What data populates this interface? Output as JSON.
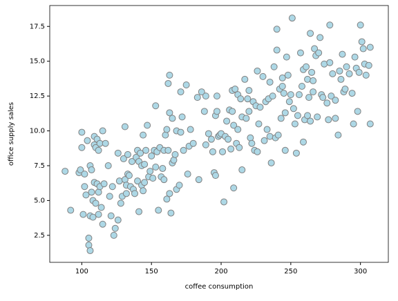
{
  "chart_data": {
    "type": "scatter",
    "xlabel": "coffee consumption",
    "ylabel": "office supply sales",
    "color": "#add8e6",
    "edgecolor": "#808080",
    "xlim": [
      77,
      320
    ],
    "ylim": [
      0.56,
      19
    ],
    "xticks": [
      100,
      150,
      200,
      250,
      300
    ],
    "yticks": [
      2.5,
      {
        "value": 5,
        "label": "5.0"
      },
      7.5,
      {
        "value": 10,
        "label": "10.0"
      },
      12.5,
      {
        "value": 15,
        "label": "15.0"
      },
      17.5
    ],
    "x": [
      88,
      92,
      98,
      99,
      100,
      100,
      101,
      102,
      102,
      103,
      104,
      105,
      105,
      106,
      106,
      106,
      107,
      107,
      108,
      108,
      109,
      109,
      110,
      109,
      110,
      111,
      111,
      112,
      112,
      112,
      113,
      113,
      114,
      115,
      115,
      116,
      117,
      119,
      120,
      121,
      122,
      123,
      124,
      126,
      126,
      127,
      128,
      129,
      130,
      131,
      131,
      132,
      132,
      133,
      133,
      134,
      135,
      136,
      137,
      138,
      139,
      140,
      140,
      141,
      141,
      142,
      143,
      143,
      144,
      144,
      145,
      145,
      146,
      147,
      148,
      149,
      150,
      151,
      152,
      153,
      153,
      154,
      155,
      156,
      157,
      158,
      159,
      159,
      160,
      161,
      161,
      162,
      162,
      163,
      163,
      163,
      164,
      165,
      165,
      166,
      167,
      168,
      168,
      170,
      171,
      171,
      172,
      173,
      175,
      176,
      177,
      178,
      180,
      183,
      184,
      186,
      188,
      189,
      189,
      191,
      193,
      194,
      195,
      196,
      196,
      197,
      197,
      198,
      199,
      200,
      201,
      202,
      203,
      204,
      205,
      206,
      207,
      208,
      208,
      209,
      209,
      210,
      211,
      212,
      212,
      213,
      214,
      215,
      215,
      217,
      218,
      219,
      220,
      220,
      221,
      222,
      223,
      224,
      225,
      226,
      226,
      227,
      228,
      230,
      231,
      232,
      233,
      234,
      235,
      235,
      236,
      237,
      238,
      239,
      240,
      240,
      241,
      242,
      243,
      244,
      244,
      245,
      246,
      246,
      247,
      248,
      249,
      250,
      251,
      252,
      253,
      254,
      255,
      256,
      257,
      258,
      259,
      259,
      260,
      261,
      262,
      262,
      263,
      264,
      264,
      265,
      266,
      266,
      267,
      268,
      269,
      270,
      271,
      272,
      273,
      274,
      276,
      277,
      278,
      278,
      279,
      280,
      282,
      282,
      284,
      285,
      286,
      287,
      288,
      289,
      290,
      292,
      294,
      295,
      296,
      297,
      298,
      299,
      300,
      301,
      302,
      303,
      304,
      306,
      307,
      307
    ],
    "values": [
      7.1,
      4.3,
      7.0,
      7.2,
      8.8,
      9.9,
      4.0,
      6.9,
      6.0,
      5.4,
      9.3,
      2.3,
      1.8,
      1.4,
      7.5,
      3.9,
      7.2,
      5.6,
      5.0,
      3.8,
      9.6,
      9.0,
      8.8,
      6.3,
      4.8,
      6.2,
      9.4,
      5.6,
      8.6,
      4.0,
      6.0,
      9.1,
      4.5,
      10.0,
      3.3,
      6.2,
      9.1,
      7.5,
      5.3,
      3.9,
      6.0,
      2.5,
      3.0,
      8.4,
      3.6,
      6.4,
      4.8,
      5.3,
      8.0,
      10.3,
      6.5,
      5.5,
      6.1,
      8.3,
      6.9,
      6.8,
      6.0,
      7.8,
      5.8,
      5.5,
      8.1,
      8.6,
      6.4,
      4.2,
      7.8,
      8.4,
      7.5,
      6.1,
      9.7,
      5.7,
      6.3,
      7.6,
      8.6,
      10.4,
      6.7,
      7.1,
      8.2,
      6.6,
      8.6,
      11.8,
      7.4,
      8.5,
      4.3,
      8.8,
      6.7,
      7.3,
      8.6,
      6.5,
      9.7,
      10.1,
      5.1,
      13.4,
      8.6,
      11.3,
      14.0,
      5.5,
      4.1,
      7.7,
      10.9,
      7.9,
      8.3,
      10.0,
      5.8,
      6.1,
      12.8,
      9.9,
      11.0,
      8.6,
      13.3,
      6.9,
      8.9,
      10.1,
      9.1,
      12.4,
      6.5,
      12.8,
      11.4,
      12.5,
      9.0,
      9.8,
      9.4,
      8.5,
      7.0,
      11.1,
      6.8,
      12.5,
      11.4,
      9.6,
      9.7,
      9.8,
      8.5,
      4.9,
      9.6,
      10.7,
      9.4,
      11.5,
      8.7,
      12.9,
      11.4,
      10.4,
      5.9,
      13.0,
      9.1,
      12.6,
      10.1,
      8.8,
      12.3,
      11.0,
      7.2,
      13.7,
      10.9,
      12.3,
      11.4,
      12.9,
      9.5,
      9.1,
      12.1,
      8.6,
      11.8,
      14.3,
      8.5,
      10.5,
      11.7,
      13.9,
      9.3,
      12.1,
      10.1,
      12.3,
      9.6,
      13.5,
      7.7,
      12.5,
      14.6,
      9.5,
      15.8,
      17.3,
      9.7,
      13.0,
      10.9,
      13.2,
      13.8,
      12.7,
      11.3,
      8.6,
      15.3,
      14.0,
      12.1,
      12.6,
      18.1,
      11.6,
      10.5,
      8.4,
      11.1,
      12.6,
      15.6,
      13.2,
      9.2,
      14.4,
      10.8,
      14.6,
      13.7,
      11.1,
      12.4,
      17.0,
      10.7,
      14.2,
      13.6,
      12.8,
      15.9,
      15.4,
      11.0,
      15.6,
      16.7,
      12.6,
      12.4,
      14.8,
      12.0,
      10.8,
      17.6,
      14.9,
      12.5,
      14.1,
      12.2,
      10.9,
      9.7,
      14.3,
      13.7,
      15.5,
      12.8,
      13.0,
      14.6,
      14.1,
      12.7,
      10.5,
      15.3,
      14.5,
      11.4,
      14.2,
      17.6,
      16.4,
      15.9,
      14.8,
      14.0,
      14.7,
      16.0,
      10.5
    ]
  }
}
